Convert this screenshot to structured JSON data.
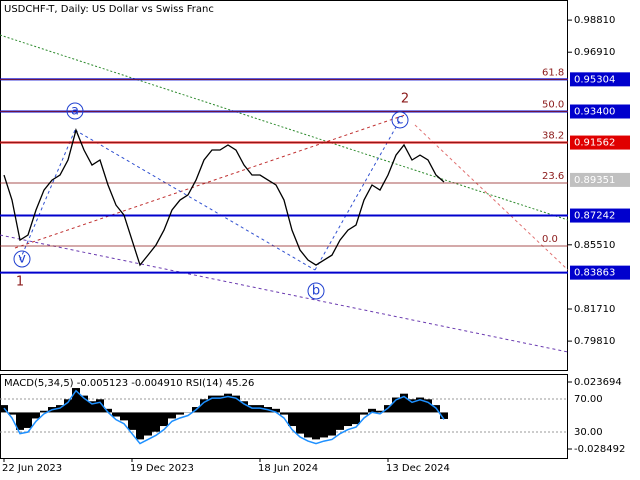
{
  "chart_data": [
    {
      "type": "line",
      "title": "USDCHF-T, Daily:  US Dollar vs Swiss Franc",
      "categories": [
        "22 Jun 2023",
        null,
        null,
        null,
        null,
        null,
        null,
        null,
        null,
        null,
        null,
        null,
        null,
        null,
        null,
        null,
        "19 Dec 2023",
        null,
        null,
        null,
        null,
        null,
        null,
        null,
        null,
        null,
        null,
        null,
        null,
        null,
        null,
        null,
        "18 Jun 2024",
        null,
        null,
        null,
        null,
        null,
        null,
        null,
        null,
        null,
        null,
        null,
        null,
        null,
        null,
        null,
        "13 Dec 2024",
        null,
        null,
        null,
        null,
        null,
        null,
        null
      ],
      "series": [
        {
          "color": "#000000",
          "values": [
            0.8964,
            0.8816,
            0.8579,
            0.8609,
            0.8757,
            0.8875,
            0.8934,
            0.8964,
            0.9053,
            0.923,
            0.9112,
            0.9023,
            0.9053,
            0.8905,
            0.8786,
            0.8727,
            0.8579,
            0.8431,
            0.849,
            0.855,
            0.8638,
            0.8757,
            0.8816,
            0.8846,
            0.8934,
            0.9053,
            0.9112,
            0.9112,
            0.9142,
            0.9112,
            0.9023,
            0.8964,
            0.8964,
            0.8934,
            0.8905,
            0.8816,
            0.8638,
            0.852,
            0.8461,
            0.8431,
            0.8461,
            0.849,
            0.8579,
            0.8638,
            0.8668,
            0.8816,
            0.8905,
            0.8875,
            0.8964,
            0.9082,
            0.9142,
            0.9053,
            0.9082,
            0.9053,
            0.8964,
            0.8923
          ]
        }
      ],
      "ylim": [
        0.781,
        1.0
      ],
      "yticks": [
        {
          "value": 0.9881,
          "label": "0.98810"
        },
        {
          "value": 0.9691,
          "label": "0.96910"
        },
        {
          "value": 0.8551,
          "label": "0.85510"
        },
        {
          "value": 0.8171,
          "label": "0.81710"
        },
        {
          "value": 0.7981,
          "label": "0.79810"
        }
      ],
      "levels": [
        {
          "value": 0.95304,
          "label": "0.95304",
          "color": "#0000cd"
        },
        {
          "value": 0.934,
          "label": "0.93400",
          "color": "#0000cd"
        },
        {
          "value": 0.91562,
          "label": "0.91562",
          "color": "#e00000"
        },
        {
          "value": 0.87242,
          "label": "0.87242",
          "color": "#0000cd"
        },
        {
          "value": 0.83863,
          "label": "0.83863",
          "color": "#0000cd"
        }
      ],
      "fib_levels": [
        {
          "value": 0.95304,
          "label": "61.8"
        },
        {
          "value": 0.934,
          "label": "50.0"
        },
        {
          "value": 0.91562,
          "label": "38.2"
        },
        {
          "value": 0.8917,
          "label": "23.6"
        },
        {
          "value": 0.8544,
          "label": "0.0"
        }
      ],
      "last_price": {
        "value": 0.89351,
        "label": "0.89351"
      },
      "annotations": [
        "a",
        "b",
        "c",
        "v",
        "1",
        "2"
      ]
    },
    {
      "type": "macd",
      "title": "MACD(5,34,5) -0.005123 -0.004910 RSI(14) 45.26",
      "series": [
        {
          "name": "MACD",
          "color": "#000000",
          "values": [
            0.0057,
            -0.0017,
            -0.0136,
            -0.0121,
            -0.0047,
            0.0013,
            0.0042,
            0.0057,
            0.0102,
            0.019,
            0.0131,
            0.0087,
            0.0102,
            0.0028,
            -0.0032,
            -0.0062,
            -0.0136,
            -0.021,
            -0.018,
            -0.015,
            -0.0106,
            -0.0047,
            -0.0017,
            -0.0002,
            0.0042,
            0.0102,
            0.0131,
            0.0131,
            0.0146,
            0.0131,
            0.0087,
            0.0057,
            0.0057,
            0.0042,
            0.0028,
            -0.0017,
            -0.0106,
            -0.0165,
            -0.0195,
            -0.021,
            -0.0195,
            -0.018,
            -0.0136,
            -0.0106,
            -0.0091,
            -0.0017,
            0.0028,
            0.0013,
            0.0057,
            0.0116,
            0.0146,
            0.0102,
            0.0116,
            0.0102,
            0.0057,
            -0.0051
          ]
        },
        {
          "name": "RSI",
          "color": "#1e90ff",
          "axis": "y2",
          "values": [
            59,
            47,
            28,
            30,
            43,
            52,
            57,
            59,
            66,
            80,
            71,
            64,
            66,
            54,
            45,
            40,
            28,
            16,
            21,
            26,
            33,
            43,
            47,
            50,
            57,
            66,
            71,
            71,
            73,
            71,
            64,
            59,
            59,
            57,
            54,
            47,
            33,
            24,
            19,
            16,
            19,
            21,
            28,
            33,
            36,
            47,
            54,
            52,
            59,
            69,
            73,
            66,
            69,
            66,
            59,
            45.26
          ]
        }
      ],
      "ylim": [
        -0.0355,
        0.02915
      ],
      "yticks": [
        0.023694,
        -0.028492
      ],
      "y2lim": [
        -1.5,
        99.1
      ],
      "y2ticks": [
        {
          "value": 70,
          "label": "70.00"
        },
        {
          "value": 30,
          "label": "30.00"
        }
      ]
    }
  ]
}
